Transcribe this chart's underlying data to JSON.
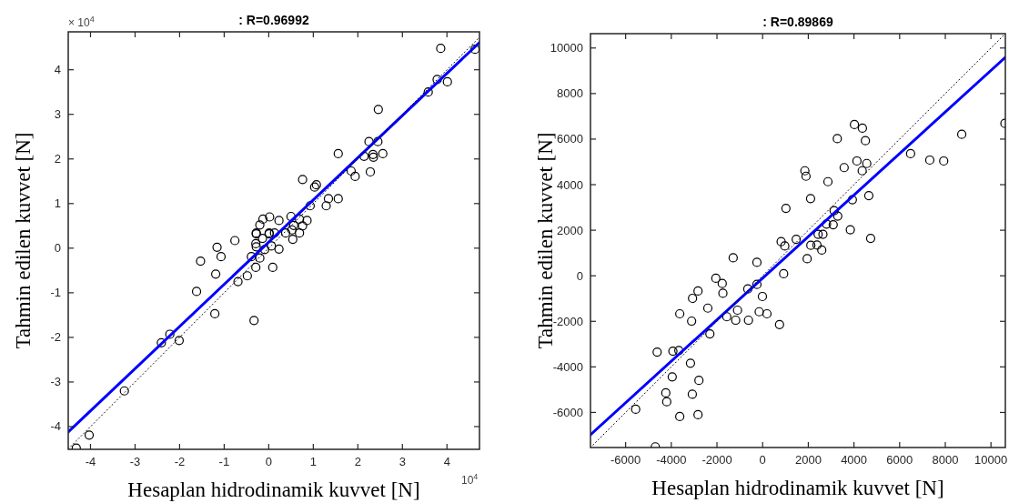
{
  "chart_data": [
    {
      "type": "scatter",
      "title": ": R=0.96992",
      "xlabel": "Hesaplan hidrodinamik kuvvet [N]",
      "ylabel": "Tahmin edilen kuvvet [N]",
      "annotations": [
        "× 10$^{4}$",
        "10$^{4}$"
      ],
      "xlim": [
        -4.5,
        4.73
      ],
      "ylim": [
        -4.51,
        4.85
      ],
      "xticks": [
        -4,
        -3,
        -2,
        -1,
        0,
        1,
        2,
        3,
        4
      ],
      "yticks": [
        -4,
        -3,
        -2,
        -1,
        0,
        1,
        2,
        3,
        4
      ],
      "series": [
        {
          "type": "scatter",
          "color": "#000000",
          "marker": "circle",
          "x": [
            4.63,
            3.86,
            3.78,
            4.01,
            3.58,
            2.46,
            2.25,
            2.45,
            2.14,
            2.34,
            2.35,
            2.56,
            2.28,
            1.56,
            1.85,
            1.94,
            0.76,
            1.03,
            1.07,
            1.34,
            1.29,
            1.56,
            0.93,
            0.02,
            -0.13,
            -0.2,
            0.23,
            0.5,
            0.69,
            0.86,
            0.56,
            0.76,
            -0.28,
            0.01,
            0.52,
            0.69,
            -0.28,
            0.01,
            0.13,
            0.38,
            0.54,
            -0.76,
            -0.29,
            -0.14,
            -1.16,
            -1.07,
            -1.53,
            -1.19,
            -0.39,
            -0.2,
            -0.09,
            0.06,
            0.23,
            -0.28,
            -0.29,
            0.09,
            -0.48,
            -0.69,
            -1.62,
            -1.21,
            -0.33,
            -2.22,
            -2.41,
            -2.01,
            -3.24,
            -4.03,
            -4.32
          ],
          "values": [
            4.46,
            4.48,
            3.78,
            3.73,
            3.5,
            3.11,
            2.39,
            2.39,
            2.06,
            2.1,
            2.04,
            2.12,
            1.71,
            2.12,
            1.73,
            1.61,
            1.54,
            1.37,
            1.42,
            1.11,
            0.95,
            1.11,
            0.95,
            0.7,
            0.65,
            0.52,
            0.62,
            0.71,
            0.65,
            0.62,
            0.51,
            0.5,
            0.34,
            0.34,
            0.41,
            0.34,
            0.32,
            0.32,
            0.34,
            0.34,
            0.2,
            0.17,
            0.1,
            0.22,
            0.02,
            -0.19,
            -0.29,
            -0.58,
            -0.19,
            -0.22,
            -0.03,
            0.05,
            -0.02,
            0.03,
            -0.43,
            -0.43,
            -0.62,
            -0.75,
            -0.97,
            -1.47,
            -1.62,
            -1.93,
            -2.12,
            -2.07,
            -3.2,
            -4.19,
            -4.48
          ]
        },
        {
          "type": "line",
          "color": "#0000ff",
          "x": [
            -4.5,
            4.73
          ],
          "values": [
            -4.12,
            4.61
          ]
        },
        {
          "type": "line",
          "color": "#000000",
          "line_style": "dotted",
          "x": [
            -4.5,
            4.73
          ],
          "values": [
            -4.5,
            4.73
          ]
        }
      ]
    },
    {
      "type": "scatter",
      "title": ": R=0.89869",
      "xlabel": "Hesaplan hidrodinamik kuvvet [N]",
      "ylabel": "Tahmin edilen kuvvet [N]",
      "xlim": [
        -7540,
        10630
      ],
      "ylim": [
        -7540,
        10630
      ],
      "xticks": [
        -6000,
        -4000,
        -2000,
        0,
        2000,
        4000,
        6000,
        8000,
        10000
      ],
      "yticks": [
        -6000,
        -4000,
        -2000,
        0,
        2000,
        4000,
        6000,
        8000,
        10000
      ],
      "series": [
        {
          "type": "scatter",
          "color": "#000000",
          "marker": "circle",
          "x": [
            10610,
            8720,
            7320,
            7930,
            6480,
            4020,
            4370,
            4500,
            3270,
            4130,
            4560,
            4360,
            3570,
            1850,
            1900,
            2860,
            2100,
            3930,
            4650,
            1020,
            3130,
            3290,
            2800,
            3090,
            3840,
            4730,
            2430,
            2640,
            810,
            970,
            1470,
            2110,
            2380,
            2590,
            1950,
            920,
            -1290,
            -250,
            -2050,
            -1770,
            -1740,
            -650,
            -250,
            -10,
            -2830,
            -3070,
            -2400,
            -3630,
            -3110,
            -1570,
            -1100,
            -1180,
            -620,
            -150,
            190,
            740,
            -2310,
            -4620,
            -3930,
            -3670,
            -3160,
            -3960,
            -2790,
            -4240,
            -4200,
            -3080,
            -5560,
            -3630,
            -2830,
            -4700
          ],
          "values": [
            6690,
            6210,
            5080,
            5040,
            5360,
            6640,
            6480,
            5930,
            6020,
            5040,
            4930,
            4610,
            4750,
            4610,
            4370,
            4130,
            3390,
            3340,
            3520,
            2960,
            2860,
            2620,
            2270,
            2240,
            2020,
            1640,
            1820,
            1820,
            1500,
            1310,
            1600,
            1340,
            1350,
            1130,
            750,
            90,
            790,
            590,
            -110,
            -340,
            -770,
            -580,
            -380,
            -910,
            -670,
            -990,
            -1420,
            -1670,
            -1990,
            -1800,
            -1510,
            -1950,
            -1950,
            -1580,
            -1670,
            -2140,
            -2550,
            -3350,
            -3310,
            -3280,
            -3840,
            -4440,
            -4590,
            -5140,
            -5530,
            -5200,
            -5860,
            -6180,
            -6100,
            -7510
          ]
        },
        {
          "type": "line",
          "color": "#0000ff",
          "x": [
            -7540,
            10630
          ],
          "values": [
            -6980,
            9590
          ]
        },
        {
          "type": "line",
          "color": "#000000",
          "line_style": "dotted",
          "x": [
            -7540,
            10630
          ],
          "values": [
            -7540,
            10630
          ]
        }
      ]
    }
  ]
}
